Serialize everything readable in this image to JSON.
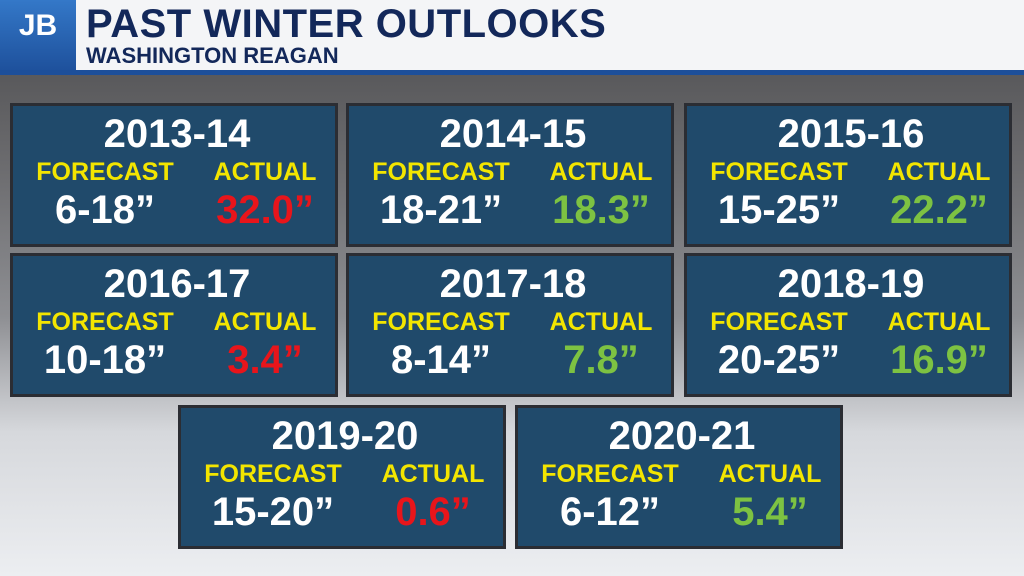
{
  "header": {
    "logo": "JB",
    "title": "PAST WINTER OUTLOOKS",
    "subtitle": "WASHINGTON REAGAN"
  },
  "cards": [
    {
      "season": "2013-14",
      "forecast_label": "FORECAST",
      "actual_label": "ACTUAL",
      "forecast": "6-18”",
      "actual": "32.0”",
      "actual_color": "#e8151b"
    },
    {
      "season": "2014-15",
      "forecast_label": "FORECAST",
      "actual_label": "ACTUAL",
      "forecast": "18-21”",
      "actual": "18.3”",
      "actual_color": "#7dc242"
    },
    {
      "season": "2015-16",
      "forecast_label": "FORECAST",
      "actual_label": "ACTUAL",
      "forecast": "15-25”",
      "actual": "22.2”",
      "actual_color": "#7dc242"
    },
    {
      "season": "2016-17",
      "forecast_label": "FORECAST",
      "actual_label": "ACTUAL",
      "forecast": "10-18”",
      "actual": "3.4”",
      "actual_color": "#e8151b"
    },
    {
      "season": "2017-18",
      "forecast_label": "FORECAST",
      "actual_label": "ACTUAL",
      "forecast": "8-14”",
      "actual": "7.8”",
      "actual_color": "#7dc242"
    },
    {
      "season": "2018-19",
      "forecast_label": "FORECAST",
      "actual_label": "ACTUAL",
      "forecast": "20-25”",
      "actual": "16.9”",
      "actual_color": "#7dc242"
    },
    {
      "season": "2019-20",
      "forecast_label": "FORECAST",
      "actual_label": "ACTUAL",
      "forecast": "15-20”",
      "actual": "0.6”",
      "actual_color": "#e8151b"
    },
    {
      "season": "2020-21",
      "forecast_label": "FORECAST",
      "actual_label": "ACTUAL",
      "forecast": "6-12”",
      "actual": "5.4”",
      "actual_color": "#7dc242"
    }
  ]
}
